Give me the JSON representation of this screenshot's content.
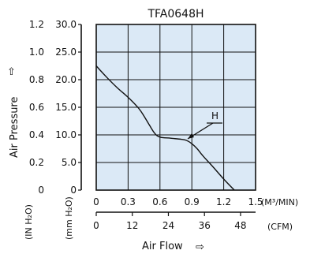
{
  "chart_data": {
    "type": "line",
    "title": "TFA0648H",
    "xlabel": "Air Flow",
    "ylabel": "Air Pressure",
    "x_primary": {
      "ticks": [
        "0",
        "0.3",
        "0.6",
        "0.9",
        "1.2",
        "1.5"
      ],
      "unit": "(M³/MIN)",
      "range": [
        0,
        1.5
      ]
    },
    "x_secondary": {
      "ticks": [
        "0",
        "12",
        "24",
        "36",
        "48"
      ],
      "unit": "(CFM)",
      "range": [
        0,
        53
      ]
    },
    "y_primary": {
      "ticks": [
        "0",
        "5.0",
        "10.0",
        "15.0",
        "20.0",
        "25.0",
        "30.0"
      ],
      "unit": "(mm H₂O)",
      "range": [
        0,
        30
      ]
    },
    "y_secondary": {
      "ticks": [
        "0",
        "0.2",
        "0.4",
        "0.6",
        "0.8",
        "1.0",
        "1.2"
      ],
      "unit": "(IN H₂O)",
      "range": [
        0,
        1.2
      ]
    },
    "grid": true,
    "series": [
      {
        "name": "H",
        "x": [
          0,
          0.1,
          0.2,
          0.3,
          0.4,
          0.45,
          0.5,
          0.55,
          0.6,
          0.7,
          0.8,
          0.85,
          0.9,
          0.95,
          1.0,
          1.1,
          1.2,
          1.3
        ],
        "y": [
          22.5,
          20.4,
          18.5,
          16.8,
          14.8,
          13.4,
          11.8,
          10.3,
          9.6,
          9.4,
          9.2,
          9.0,
          8.4,
          7.5,
          6.3,
          4.2,
          2.0,
          0
        ]
      }
    ],
    "annotation": "H",
    "arrows": [
      "⇧",
      "⇨"
    ]
  }
}
